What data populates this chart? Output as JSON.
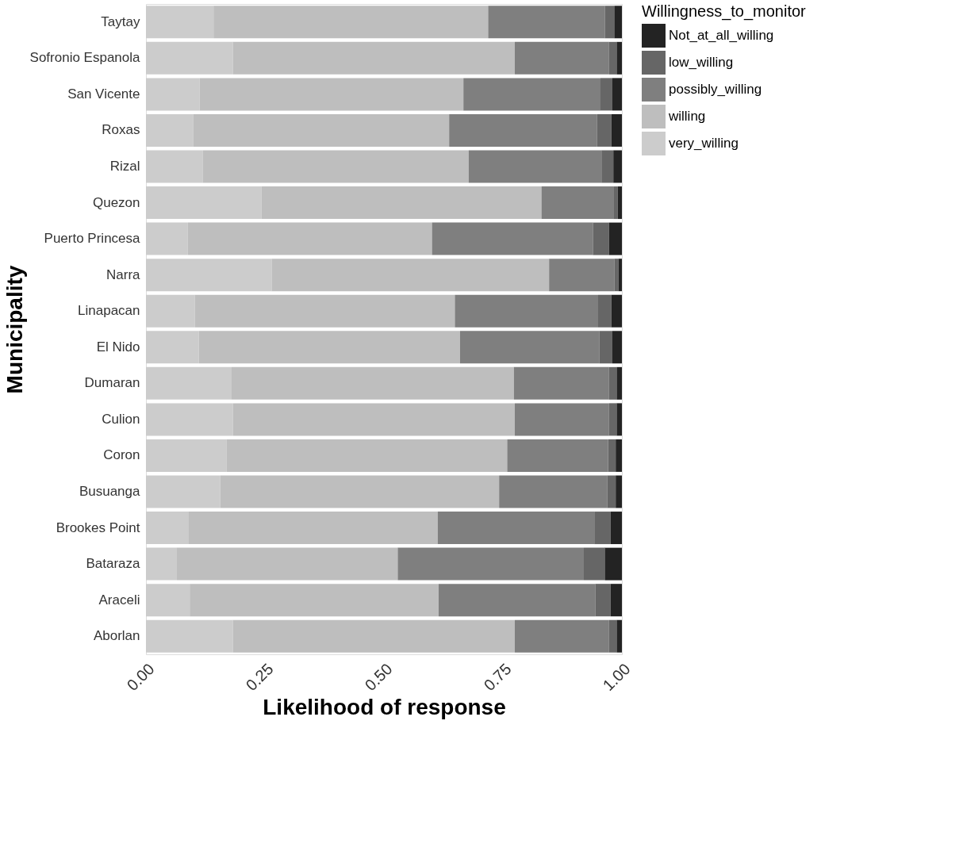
{
  "chart_data": {
    "type": "bar",
    "orientation": "horizontal",
    "stacked": true,
    "xlabel": "Likelihood of response",
    "ylabel": "Municipality",
    "legend_title": "Willingness_to_monitor",
    "legend": "right",
    "grid": false,
    "categories": [
      "Taytay",
      "Sofronio Espanola",
      "San Vicente",
      "Roxas",
      "Rizal",
      "Quezon",
      "Puerto Princesa",
      "Narra",
      "Linapacan",
      "El Nido",
      "Dumaran",
      "Culion",
      "Coron",
      "Busuanga",
      "Brookes Point",
      "Bataraza",
      "Araceli",
      "Aborlan"
    ],
    "xlim": [
      0,
      1
    ],
    "xticks": [
      {
        "value": 0,
        "label": "0.00"
      },
      {
        "value": 0.25,
        "label": "0.25"
      },
      {
        "value": 0.5,
        "label": "0.50"
      },
      {
        "value": 0.75,
        "label": "0.75"
      },
      {
        "value": 1,
        "label": "1.00"
      }
    ],
    "series": [
      {
        "name": "very_willing",
        "color": "#cccccc",
        "values": [
          0.142,
          0.183,
          0.113,
          0.099,
          0.119,
          0.243,
          0.088,
          0.264,
          0.103,
          0.111,
          0.18,
          0.183,
          0.169,
          0.156,
          0.09,
          0.065,
          0.092,
          0.183
        ]
      },
      {
        "name": "willing",
        "color": "#bebebe",
        "values": [
          0.577,
          0.592,
          0.554,
          0.538,
          0.559,
          0.588,
          0.513,
          0.583,
          0.546,
          0.549,
          0.593,
          0.592,
          0.59,
          0.586,
          0.523,
          0.464,
          0.523,
          0.592
        ]
      },
      {
        "name": "possibly_willing",
        "color": "#7f7f7f",
        "values": [
          0.245,
          0.198,
          0.288,
          0.311,
          0.279,
          0.151,
          0.338,
          0.137,
          0.301,
          0.293,
          0.2,
          0.198,
          0.212,
          0.227,
          0.329,
          0.391,
          0.329,
          0.198
        ]
      },
      {
        "name": "low_willing",
        "color": "#666666",
        "values": [
          0.02,
          0.016,
          0.025,
          0.03,
          0.025,
          0.009,
          0.034,
          0.009,
          0.028,
          0.027,
          0.016,
          0.016,
          0.016,
          0.018,
          0.034,
          0.044,
          0.032,
          0.016
        ]
      },
      {
        "name": "Not_at_all_willing",
        "color": "#232323",
        "values": [
          0.016,
          0.011,
          0.02,
          0.022,
          0.018,
          0.009,
          0.027,
          0.007,
          0.022,
          0.02,
          0.011,
          0.011,
          0.013,
          0.013,
          0.024,
          0.036,
          0.024,
          0.011
        ]
      }
    ]
  }
}
